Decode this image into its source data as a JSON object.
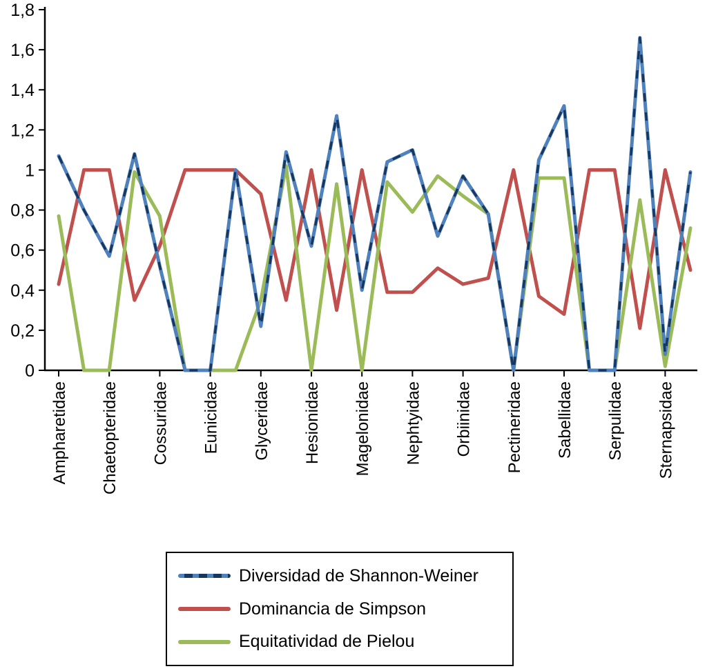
{
  "chart_data": {
    "type": "line",
    "title": "",
    "xlabel": "",
    "ylabel": "",
    "ylim": [
      0,
      1.8
    ],
    "y_tick_step": 0.2,
    "y_tick_labels": [
      "0",
      "0,2",
      "0,4",
      "0,6",
      "0,8",
      "1",
      "1,2",
      "1,4",
      "1,6",
      "1,8"
    ],
    "decimal_separator": ",",
    "grid": false,
    "axis_color": "#000000",
    "legend_position": "bottom",
    "categories": [
      "Ampharetidae",
      "Chaetopteridae",
      "Cossuridae",
      "Eunicidae",
      "Glyceridae",
      "Hesionidae",
      "Magelonidae",
      "Nephtyidae",
      "Orbiinidae",
      "Pectineridae",
      "Sabellidae",
      "Serpulidae",
      "Sternapsidae"
    ],
    "points_per_category": 2,
    "series": [
      {
        "id": "shannon",
        "name": "Diversidad de Shannon-Weiner",
        "color": "#4F81BD",
        "dash_overlay_color": "#17375E",
        "values": [
          1.07,
          0.8,
          0.57,
          1.08,
          0.52,
          0,
          0,
          1.0,
          0.22,
          1.09,
          0.62,
          1.27,
          0.4,
          1.04,
          1.1,
          0.67,
          0.97,
          0.78,
          0,
          1.05,
          1.32,
          0,
          0,
          1.66,
          0.08,
          0.99
        ]
      },
      {
        "id": "simpson",
        "name": "Dominancia de Simpson",
        "color": "#C0504D",
        "values": [
          0.43,
          1.0,
          1.0,
          0.35,
          0.62,
          1.0,
          1.0,
          1.0,
          0.88,
          0.35,
          1.0,
          0.3,
          1.0,
          0.39,
          0.39,
          0.51,
          0.43,
          0.46,
          1.0,
          0.37,
          0.28,
          1.0,
          1.0,
          0.21,
          1.0,
          0.5
        ]
      },
      {
        "id": "pielou",
        "name": "Equitatividad de Pielou",
        "color": "#9BBB59",
        "values": [
          0.77,
          0,
          0,
          0.99,
          0.77,
          0,
          0,
          0,
          0.35,
          1.02,
          0,
          0.93,
          0,
          0.94,
          0.79,
          0.97,
          0.87,
          0.78,
          0,
          0.96,
          0.96,
          0,
          0,
          0.85,
          0.02,
          0.71
        ]
      }
    ]
  }
}
